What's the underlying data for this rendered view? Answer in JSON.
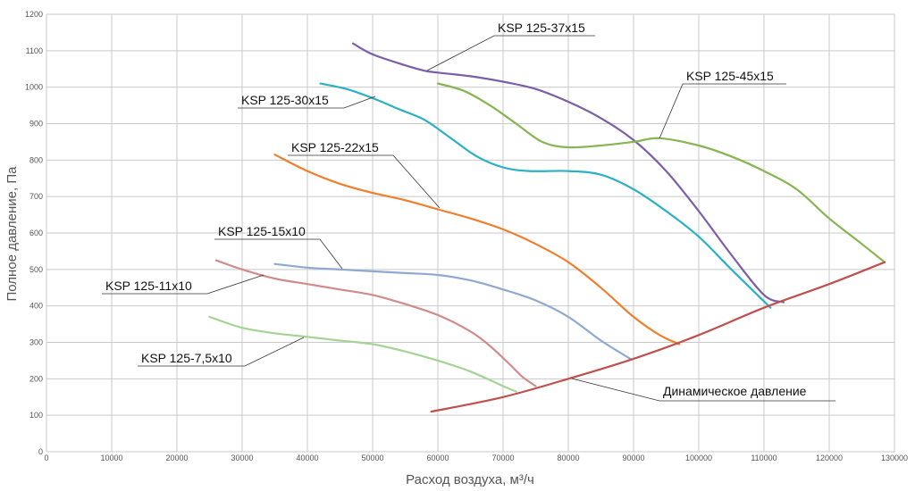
{
  "chart_data": {
    "type": "line",
    "title": "",
    "xlabel": "Расход воздуха, м³/ч",
    "ylabel": "Полное давление, Па",
    "xlim": [
      0,
      130000
    ],
    "ylim": [
      0,
      1200
    ],
    "grid": true,
    "legend": "none (inline labels)",
    "x_ticks": [
      "0",
      "10000",
      "20000",
      "30000",
      "40000",
      "50000",
      "60000",
      "70000",
      "80000",
      "90000",
      "100000",
      "110000",
      "120000",
      "130000"
    ],
    "y_ticks": [
      "0",
      "100",
      "200",
      "300",
      "400",
      "500",
      "600",
      "700",
      "800",
      "900",
      "1000",
      "1100",
      "1200"
    ],
    "series": [
      {
        "name": "KSP 125-37x15",
        "color": "#7b5ea8",
        "x": [
          47000,
          50000,
          55000,
          58000,
          60000,
          65000,
          70000,
          75000,
          80000,
          85000,
          90000,
          95000,
          100000,
          105000,
          110000,
          113000
        ],
        "y": [
          1120,
          1090,
          1060,
          1045,
          1040,
          1030,
          1015,
          995,
          960,
          915,
          855,
          770,
          660,
          540,
          430,
          410
        ]
      },
      {
        "name": "KSP 125-45x15",
        "color": "#86b551",
        "x": [
          60000,
          64000,
          68000,
          72000,
          76000,
          80000,
          85000,
          90000,
          94000,
          100000,
          105000,
          110000,
          115000,
          120000,
          125000,
          128500
        ],
        "y": [
          1010,
          990,
          950,
          900,
          850,
          835,
          840,
          850,
          860,
          840,
          810,
          770,
          720,
          640,
          570,
          520
        ]
      },
      {
        "name": "KSP 125-30x15",
        "color": "#2bb0c4",
        "x": [
          42000,
          46000,
          50000,
          54000,
          58000,
          62000,
          66000,
          70000,
          74000,
          80000,
          85000,
          90000,
          95000,
          100000,
          105000,
          111000
        ],
        "y": [
          1010,
          995,
          970,
          940,
          910,
          860,
          810,
          780,
          770,
          770,
          760,
          720,
          660,
          590,
          500,
          395
        ]
      },
      {
        "name": "KSP 125-22x15",
        "color": "#f07f2d",
        "x": [
          35000,
          40000,
          45000,
          50000,
          55000,
          60000,
          65000,
          70000,
          75000,
          80000,
          85000,
          90000,
          94000,
          97000
        ],
        "y": [
          815,
          770,
          735,
          710,
          690,
          665,
          640,
          610,
          570,
          520,
          450,
          370,
          320,
          295
        ]
      },
      {
        "name": "KSP 125-15x10",
        "color": "#8ea9d1",
        "x": [
          35000,
          40000,
          45000,
          50000,
          55000,
          60000,
          65000,
          70000,
          75000,
          80000,
          85000,
          89500
        ],
        "y": [
          515,
          505,
          500,
          495,
          490,
          485,
          470,
          445,
          415,
          370,
          305,
          255
        ]
      },
      {
        "name": "KSP 125-11x10",
        "color": "#d08b8b",
        "x": [
          26000,
          30000,
          35000,
          40000,
          45000,
          50000,
          55000,
          60000,
          65000,
          68000,
          71000,
          73000,
          75000
        ],
        "y": [
          525,
          500,
          475,
          460,
          445,
          430,
          405,
          375,
          330,
          290,
          240,
          205,
          180
        ]
      },
      {
        "name": "KSP 125-7,5x10",
        "color": "#a5d396",
        "x": [
          25000,
          30000,
          35000,
          40000,
          45000,
          50000,
          55000,
          60000,
          65000,
          70000,
          72000
        ],
        "y": [
          370,
          340,
          325,
          315,
          305,
          295,
          275,
          250,
          220,
          180,
          165
        ]
      },
      {
        "name": "Динамическое давление",
        "color": "#c0504d",
        "x": [
          59000,
          70000,
          80000,
          90000,
          100000,
          110000,
          120000,
          128500
        ],
        "y": [
          110,
          150,
          200,
          255,
          320,
          395,
          460,
          520
        ]
      }
    ]
  }
}
